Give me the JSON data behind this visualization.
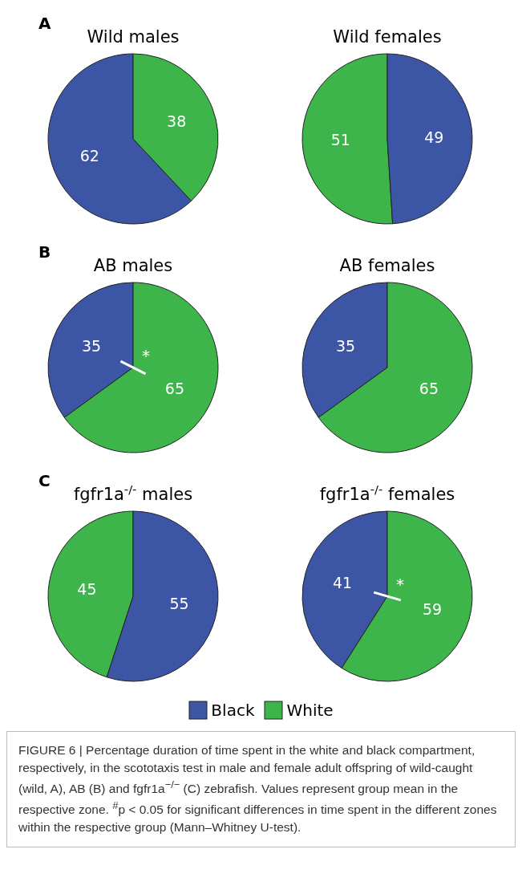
{
  "chart_data": [
    {
      "type": "pie",
      "title": "Wild males",
      "categories": [
        "Black",
        "White"
      ],
      "values": [
        62,
        38
      ],
      "colors": [
        "#3c55a5",
        "#3db54a"
      ],
      "data_labels": true,
      "legend": "bottom",
      "annotations": [
        "A"
      ]
    },
    {
      "type": "pie",
      "title": "Wild females",
      "categories": [
        null,
        null
      ],
      "values": [
        51,
        49
      ],
      "colors": [
        "#3db54a",
        "#3c55a5"
      ],
      "data_labels": true
    },
    {
      "type": "pie",
      "title": "AB males",
      "categories": [
        null,
        null
      ],
      "values": [
        35,
        65
      ],
      "colors": [
        "#3c55a5",
        "#3db54a"
      ],
      "data_labels": true,
      "annotations": [
        "B",
        "*"
      ]
    },
    {
      "type": "pie",
      "title": "AB females",
      "categories": [
        null,
        null
      ],
      "values": [
        35,
        65
      ],
      "colors": [
        "#3c55a5",
        "#3db54a"
      ],
      "data_labels": true
    },
    {
      "type": "pie",
      "title": "fgfr1a$^{-/-}$ males",
      "categories": [
        null,
        null
      ],
      "values": [
        45,
        55
      ],
      "colors": [
        "#3db54a",
        "#3c55a5"
      ],
      "data_labels": true,
      "annotations": [
        "C"
      ]
    },
    {
      "type": "pie",
      "title": "fgfr1a$^{-/-}$ females",
      "categories": [
        null,
        null
      ],
      "values": [
        41,
        59
      ],
      "colors": [
        "#3c55a5",
        "#3db54a"
      ],
      "data_labels": true,
      "annotations": [
        "*",
        "FIGURE 6 | Percentage duration of time spent in the white and black compartment, respectively, in the scototaxis test in male and female adult offspring of wild-caught (wild, A), AB (B) and fgfr1a$^{−/−}$ (C) zebrafish. Values represent group mean in the respective zone. $^{#}$p < 0.05 for significant differences in time spent in the different zones within the respective group (Mann–Whitney U-test)."
      ]
    }
  ]
}
